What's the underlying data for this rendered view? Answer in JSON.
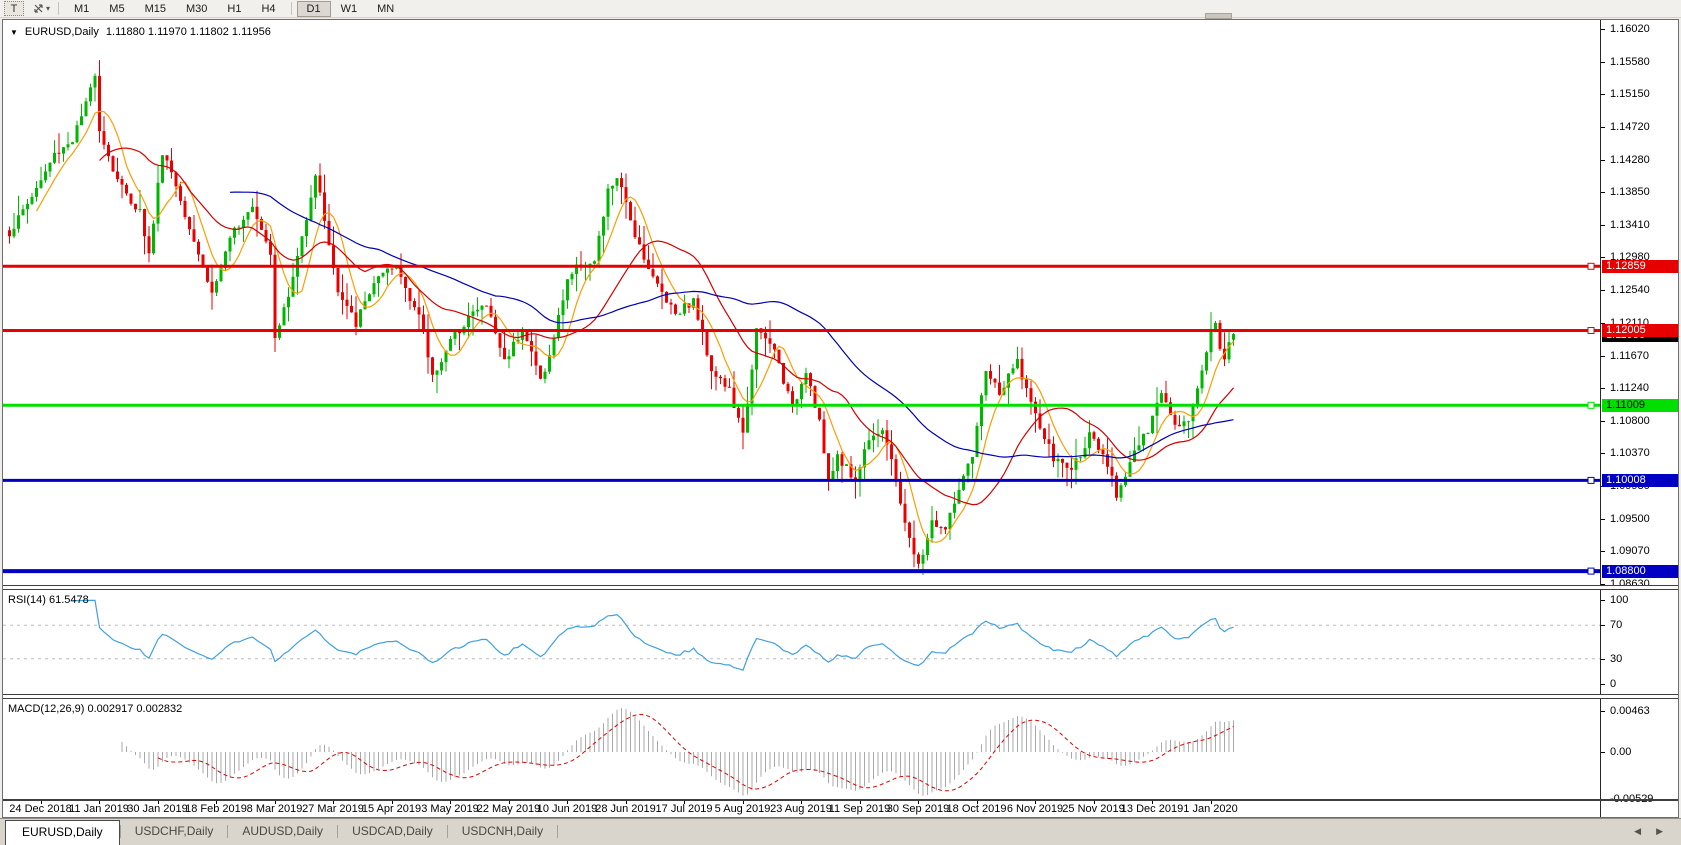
{
  "toolbar": {
    "text_tool_label": "T",
    "cursor_tool_icon": "move-arrows-icon",
    "dropdown_icon": "▾",
    "timeframe_groups": [
      [
        "M1",
        "M5",
        "M15",
        "M30",
        "H1",
        "H4"
      ],
      [
        "D1",
        "W1",
        "MN"
      ]
    ],
    "active_timeframe": "D1"
  },
  "chart": {
    "collapse_icon": "▼",
    "symbol_label": "EURUSD,Daily",
    "ohlc_text": "1.11880 1.11970 1.11802 1.11956"
  },
  "chart_data": {
    "type": "candlestick",
    "symbol": "EURUSD",
    "timeframe": "Daily",
    "num_candles": 273,
    "last_candle": {
      "o": 1.1188,
      "h": 1.1197,
      "l": 1.11802,
      "c": 1.11956
    },
    "price_axis_range": {
      "top": 1.1614,
      "bottom": 1.08615
    },
    "price_axis_ticks": [
      {
        "label": "1.16020",
        "value": 1.1602
      },
      {
        "label": "1.15580",
        "value": 1.1558
      },
      {
        "label": "1.15150",
        "value": 1.1515
      },
      {
        "label": "1.14720",
        "value": 1.1472
      },
      {
        "label": "1.14280",
        "value": 1.1428
      },
      {
        "label": "1.13850",
        "value": 1.1385
      },
      {
        "label": "1.13410",
        "value": 1.1341
      },
      {
        "label": "1.12980",
        "value": 1.1298
      },
      {
        "label": "1.12540",
        "value": 1.1254
      },
      {
        "label": "1.12110",
        "value": 1.1211
      },
      {
        "label": "1.11670",
        "value": 1.1167
      },
      {
        "label": "1.11240",
        "value": 1.1124
      },
      {
        "label": "1.10800",
        "value": 1.108
      },
      {
        "label": "1.10370",
        "value": 1.1037
      },
      {
        "label": "1.09930",
        "value": 1.0993
      },
      {
        "label": "1.09500",
        "value": 1.095
      },
      {
        "label": "1.09070",
        "value": 1.0907
      },
      {
        "label": "1.08630",
        "value": 1.0863
      }
    ],
    "x_axis_dates": [
      "24 Dec 2018",
      "11 Jan 2019",
      "30 Jan 2019",
      "18 Feb 2019",
      "8 Mar 2019",
      "27 Mar 2019",
      "15 Apr 2019",
      "3 May 2019",
      "22 May 2019",
      "10 Jun 2019",
      "28 Jun 2019",
      "17 Jul 2019",
      "5 Aug 2019",
      "23 Aug 2019",
      "11 Sep 2019",
      "30 Sep 2019",
      "18 Oct 2019",
      "6 Nov 2019",
      "25 Nov 2019",
      "13 Dec 2019",
      "1 Jan 2020"
    ],
    "close_path_anchors": [
      [
        0,
        1.133
      ],
      [
        4,
        1.137
      ],
      [
        7,
        1.14
      ],
      [
        10,
        1.1435
      ],
      [
        14,
        1.1455
      ],
      [
        17,
        1.15
      ],
      [
        19,
        1.1545
      ],
      [
        20,
        1.147
      ],
      [
        23,
        1.1415
      ],
      [
        26,
        1.138
      ],
      [
        29,
        1.136
      ],
      [
        31,
        1.13
      ],
      [
        34,
        1.144
      ],
      [
        36,
        1.1412
      ],
      [
        40,
        1.134
      ],
      [
        45,
        1.125
      ],
      [
        50,
        1.1335
      ],
      [
        54,
        1.137
      ],
      [
        58,
        1.1305
      ],
      [
        59,
        1.1195
      ],
      [
        62,
        1.1245
      ],
      [
        65,
        1.1325
      ],
      [
        68,
        1.141
      ],
      [
        70,
        1.135
      ],
      [
        73,
        1.125
      ],
      [
        77,
        1.121
      ],
      [
        81,
        1.1265
      ],
      [
        86,
        1.1285
      ],
      [
        91,
        1.122
      ],
      [
        94,
        1.114
      ],
      [
        98,
        1.1185
      ],
      [
        102,
        1.122
      ],
      [
        106,
        1.1235
      ],
      [
        110,
        1.116
      ],
      [
        114,
        1.1205
      ],
      [
        118,
        1.1135
      ],
      [
        120,
        1.1165
      ],
      [
        124,
        1.127
      ],
      [
        127,
        1.129
      ],
      [
        130,
        1.129
      ],
      [
        133,
        1.1385
      ],
      [
        135,
        1.1405
      ],
      [
        139,
        1.133
      ],
      [
        143,
        1.127
      ],
      [
        148,
        1.1225
      ],
      [
        152,
        1.124
      ],
      [
        156,
        1.115
      ],
      [
        160,
        1.112
      ],
      [
        163,
        1.106
      ],
      [
        166,
        1.12
      ],
      [
        170,
        1.1175
      ],
      [
        174,
        1.1095
      ],
      [
        177,
        1.115
      ],
      [
        180,
        1.108
      ],
      [
        182,
        1.0995
      ],
      [
        184,
        1.1035
      ],
      [
        188,
        1.1
      ],
      [
        191,
        1.106
      ],
      [
        194,
        1.107
      ],
      [
        197,
        1.1
      ],
      [
        200,
        1.092
      ],
      [
        202,
        1.0885
      ],
      [
        205,
        1.0945
      ],
      [
        208,
        1.0935
      ],
      [
        211,
        1.099
      ],
      [
        214,
        1.103
      ],
      [
        217,
        1.115
      ],
      [
        220,
        1.1115
      ],
      [
        224,
        1.116
      ],
      [
        228,
        1.1085
      ],
      [
        232,
        1.103
      ],
      [
        236,
        1.1015
      ],
      [
        240,
        1.106
      ],
      [
        244,
        1.102
      ],
      [
        246,
        1.0982
      ],
      [
        250,
        1.104
      ],
      [
        253,
        1.1065
      ],
      [
        256,
        1.112
      ],
      [
        259,
        1.108
      ],
      [
        262,
        1.1078
      ],
      [
        265,
        1.115
      ],
      [
        267,
        1.1199
      ],
      [
        268,
        1.1215
      ],
      [
        269,
        1.1172
      ],
      [
        270,
        1.116
      ],
      [
        271,
        1.1185
      ],
      [
        272,
        1.11956
      ]
    ],
    "horizontal_levels": [
      {
        "label": "1.12859",
        "price": 1.12859,
        "color": "#e60000",
        "text_color": "#ffffff",
        "thickness": 3
      },
      {
        "label": "1.12005",
        "price": 1.12005,
        "color": "#e60000",
        "text_color": "#ffffff",
        "thickness": 3
      },
      {
        "label": "1.11009",
        "price": 1.11009,
        "color": "#00df00",
        "text_color": "#000000",
        "thickness": 3
      },
      {
        "label": "1.10008",
        "price": 1.10008,
        "color": "#0000c4",
        "text_color": "#ffffff",
        "thickness": 3
      },
      {
        "label": "1.08800",
        "price": 1.088,
        "color": "#0000c4",
        "text_color": "#ffffff",
        "thickness": 4
      }
    ],
    "current_price_tag": {
      "label": "1.11956",
      "price": 1.11956,
      "bg": "#000000",
      "text_color": "#ffffff"
    },
    "moving_averages": [
      {
        "name": "fast",
        "period": 7,
        "color": "#ff9c00"
      },
      {
        "name": "medium",
        "period": 21,
        "color": "#d40000"
      },
      {
        "name": "slow",
        "period": 50,
        "color": "#0000b4"
      }
    ],
    "rsi": {
      "label": "RSI(14) 61.5478",
      "period": 14,
      "value": 61.5478,
      "color": "#3fa0e0",
      "level_lines": [
        70,
        30
      ],
      "ticks": [
        {
          "label": "100",
          "value": 100
        },
        {
          "label": "70",
          "value": 70
        },
        {
          "label": "30",
          "value": 30
        },
        {
          "label": "0",
          "value": 0
        }
      ]
    },
    "macd": {
      "label": "MACD(12,26,9) 0.002917 0.002832",
      "fast": 12,
      "slow": 26,
      "signal": 9,
      "values": [
        0.002917,
        0.002832
      ],
      "histogram_color": "#a8a8a8",
      "signal_color": "#e00000",
      "ticks": [
        {
          "label": "0.00463",
          "value": 0.00463
        },
        {
          "label": "0.00",
          "value": 0
        },
        {
          "label": "-0.00529",
          "value": -0.00529
        }
      ]
    },
    "colors": {
      "up": "#00b700",
      "down": "#ea0000",
      "background": "#ffffff"
    }
  },
  "tabs": {
    "items": [
      "EURUSD,Daily",
      "USDCHF,Daily",
      "AUDUSD,Daily",
      "USDCAD,Daily",
      "USDCNH,Daily"
    ],
    "active_index": 0,
    "scroll_left_icon": "◀",
    "scroll_right_icon": "▶"
  }
}
